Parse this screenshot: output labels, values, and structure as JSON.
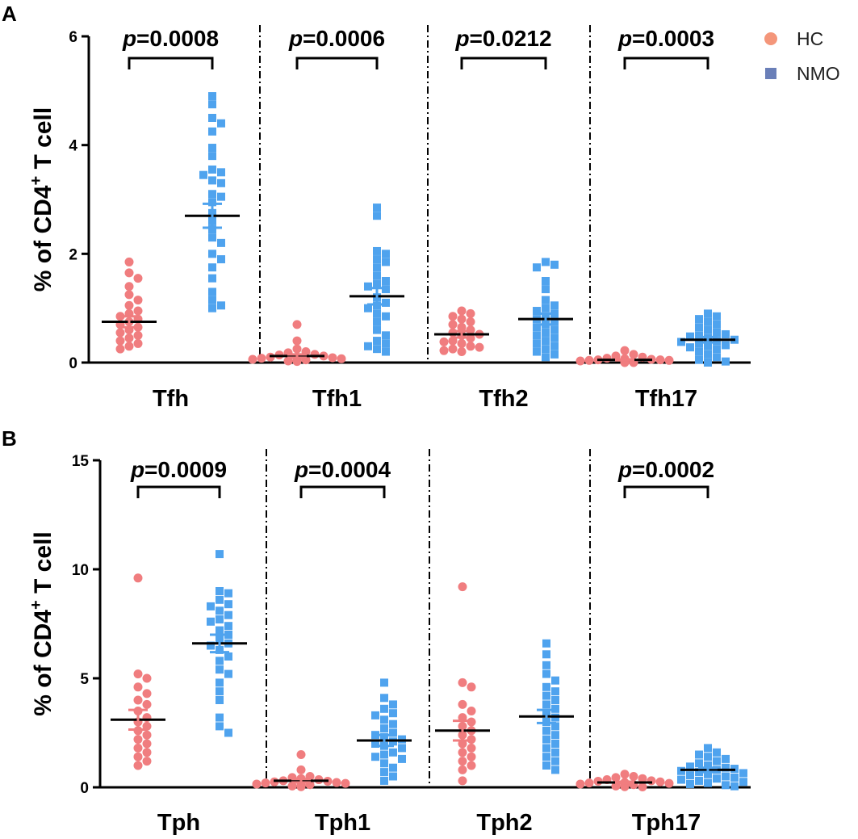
{
  "colors": {
    "hc": "#f07d7f",
    "nmo": "#4fa3ee",
    "legend_hc": "#f4967a",
    "legend_nmo": "#6a7fb8",
    "mean_line": "#000000"
  },
  "legend": {
    "items": [
      {
        "label": "HC",
        "shape": "circle",
        "color": "#f4967a"
      },
      {
        "label": "NMO",
        "shape": "square",
        "color": "#6a7fb8"
      }
    ]
  },
  "chart_data": [
    {
      "panel": "A",
      "type": "scatter",
      "title": "",
      "ylabel": "% of CD4⁺ T cell",
      "ylabel_main": "% of CD4",
      "ylabel_sup": "+",
      "ylabel_tail": " T cell",
      "ylim": [
        0,
        6
      ],
      "yticks": [
        0,
        2,
        4,
        6
      ],
      "categories": [
        "Tfh",
        "Tfh1",
        "Tfh2",
        "Tfh17"
      ],
      "groups": [
        "HC",
        "NMO"
      ],
      "p_values": [
        {
          "category": "Tfh",
          "p": "p",
          "value": "=0.0008"
        },
        {
          "category": "Tfh1",
          "p": "p",
          "value": "=0.0006"
        },
        {
          "category": "Tfh2",
          "p": "p",
          "value": "=0.0212"
        },
        {
          "category": "Tfh17",
          "p": "p",
          "value": "=0.0003"
        }
      ],
      "series": [
        {
          "category": "Tfh",
          "group": "HC",
          "mean": 0.75,
          "sem": 0.1,
          "values": [
            1.85,
            1.65,
            1.55,
            1.4,
            1.25,
            1.15,
            1.05,
            0.95,
            0.9,
            0.85,
            0.8,
            0.75,
            0.7,
            0.65,
            0.6,
            0.55,
            0.5,
            0.45,
            0.4,
            0.35,
            0.3,
            0.25
          ]
        },
        {
          "category": "Tfh",
          "group": "NMO",
          "mean": 2.7,
          "sem": 0.22,
          "values": [
            4.9,
            4.75,
            4.5,
            4.4,
            4.25,
            3.95,
            3.8,
            3.55,
            3.5,
            3.45,
            3.35,
            3.3,
            3.1,
            3.05,
            2.95,
            2.75,
            2.6,
            2.45,
            2.3,
            2.2,
            2.0,
            1.9,
            1.75,
            1.55,
            1.3,
            1.15,
            1.05,
            1.0
          ]
        },
        {
          "category": "Tfh1",
          "group": "HC",
          "mean": 0.12,
          "sem": 0.03,
          "values": [
            0.7,
            0.4,
            0.25,
            0.2,
            0.18,
            0.15,
            0.14,
            0.12,
            0.1,
            0.1,
            0.09,
            0.08,
            0.07,
            0.06,
            0.05,
            0.05,
            0.04,
            0.04,
            0.03,
            0.02
          ]
        },
        {
          "category": "Tfh1",
          "group": "NMO",
          "mean": 1.22,
          "sem": 0.15,
          "values": [
            2.85,
            2.7,
            2.05,
            2.0,
            1.9,
            1.85,
            1.75,
            1.6,
            1.5,
            1.45,
            1.4,
            1.35,
            1.2,
            1.1,
            1.05,
            1.0,
            0.9,
            0.85,
            0.75,
            0.6,
            0.5,
            0.4,
            0.35,
            0.3,
            0.25,
            0.2
          ]
        },
        {
          "category": "Tfh2",
          "group": "HC",
          "mean": 0.52,
          "sem": 0.06,
          "values": [
            0.95,
            0.9,
            0.85,
            0.8,
            0.75,
            0.7,
            0.65,
            0.6,
            0.55,
            0.52,
            0.5,
            0.45,
            0.4,
            0.38,
            0.35,
            0.3,
            0.28,
            0.25,
            0.22,
            0.2
          ]
        },
        {
          "category": "Tfh2",
          "group": "NMO",
          "mean": 0.8,
          "sem": 0.1,
          "values": [
            1.85,
            1.8,
            1.75,
            1.5,
            1.35,
            1.15,
            1.05,
            1.0,
            0.95,
            0.9,
            0.85,
            0.8,
            0.75,
            0.7,
            0.65,
            0.6,
            0.55,
            0.5,
            0.45,
            0.4,
            0.35,
            0.3,
            0.25,
            0.2,
            0.15,
            0.1
          ]
        },
        {
          "category": "Tfh17",
          "group": "HC",
          "mean": 0.05,
          "sem": 0.01,
          "values": [
            0.22,
            0.15,
            0.12,
            0.1,
            0.08,
            0.07,
            0.06,
            0.05,
            0.05,
            0.04,
            0.04,
            0.03,
            0.03,
            0.02,
            0.02,
            0.01,
            0.01,
            0.01,
            0.0,
            0.0
          ]
        },
        {
          "category": "Tfh17",
          "group": "NMO",
          "mean": 0.42,
          "sem": 0.05,
          "values": [
            0.9,
            0.85,
            0.8,
            0.75,
            0.7,
            0.65,
            0.6,
            0.55,
            0.52,
            0.5,
            0.48,
            0.45,
            0.42,
            0.4,
            0.38,
            0.35,
            0.32,
            0.3,
            0.28,
            0.25,
            0.2,
            0.15,
            0.1,
            0.05,
            0.02,
            0.0
          ]
        }
      ]
    },
    {
      "panel": "B",
      "type": "scatter",
      "title": "",
      "ylabel": "% of CD4⁺ T cell",
      "ylabel_main": "% of CD4",
      "ylabel_sup": "+",
      "ylabel_tail": " T cell",
      "ylim": [
        0,
        15
      ],
      "yticks": [
        0,
        5,
        10,
        15
      ],
      "categories": [
        "Tph",
        "Tph1",
        "Tph2",
        "Tph17"
      ],
      "groups": [
        "HC",
        "NMO"
      ],
      "p_values": [
        {
          "category": "Tph",
          "p": "p",
          "value": "=0.0009"
        },
        {
          "category": "Tph1",
          "p": "p",
          "value": "=0.0004"
        },
        {
          "category": "Tph17",
          "p": "p",
          "value": "=0.0002"
        }
      ],
      "series": [
        {
          "category": "Tph",
          "group": "HC",
          "mean": 3.1,
          "sem": 0.45,
          "values": [
            9.6,
            5.2,
            5.0,
            4.6,
            4.3,
            4.0,
            3.8,
            3.5,
            3.2,
            3.0,
            2.8,
            2.6,
            2.4,
            2.2,
            2.0,
            1.8,
            1.6,
            1.4,
            1.2,
            1.0
          ]
        },
        {
          "category": "Tph",
          "group": "NMO",
          "mean": 6.6,
          "sem": 0.4,
          "values": [
            10.7,
            9.0,
            8.9,
            8.6,
            8.4,
            8.3,
            8.1,
            7.9,
            7.7,
            7.6,
            7.4,
            7.2,
            7.0,
            6.8,
            6.6,
            6.5,
            6.3,
            6.0,
            5.8,
            5.4,
            5.2,
            4.8,
            4.4,
            4.0,
            3.2,
            2.8,
            2.5
          ]
        },
        {
          "category": "Tph1",
          "group": "HC",
          "mean": 0.3,
          "sem": 0.08,
          "values": [
            1.5,
            0.8,
            0.5,
            0.45,
            0.4,
            0.35,
            0.3,
            0.28,
            0.25,
            0.22,
            0.2,
            0.18,
            0.15,
            0.12,
            0.1,
            0.08,
            0.06,
            0.05,
            0.03
          ]
        },
        {
          "category": "Tph1",
          "group": "NMO",
          "mean": 2.15,
          "sem": 0.25,
          "values": [
            4.8,
            4.1,
            3.8,
            3.6,
            3.4,
            3.3,
            3.1,
            2.9,
            2.7,
            2.5,
            2.4,
            2.3,
            2.2,
            2.1,
            2.0,
            1.9,
            1.8,
            1.6,
            1.5,
            1.4,
            1.3,
            1.1,
            0.9,
            0.7,
            0.5,
            0.3
          ]
        },
        {
          "category": "Tph2",
          "group": "HC",
          "mean": 2.6,
          "sem": 0.45,
          "values": [
            9.2,
            4.8,
            4.6,
            3.8,
            3.5,
            3.2,
            3.0,
            2.8,
            2.6,
            2.4,
            2.2,
            2.0,
            1.8,
            1.6,
            1.4,
            1.2,
            1.0,
            0.8,
            0.3
          ]
        },
        {
          "category": "Tph2",
          "group": "NMO",
          "mean": 3.25,
          "sem": 0.3,
          "values": [
            6.6,
            6.1,
            5.6,
            5.2,
            4.9,
            4.6,
            4.4,
            4.2,
            4.0,
            3.8,
            3.6,
            3.4,
            3.2,
            3.0,
            2.8,
            2.6,
            2.4,
            2.2,
            2.0,
            1.8,
            1.6,
            1.4,
            1.2,
            1.0,
            0.8
          ]
        },
        {
          "category": "Tph17",
          "group": "HC",
          "mean": 0.22,
          "sem": 0.04,
          "values": [
            0.6,
            0.5,
            0.45,
            0.4,
            0.35,
            0.3,
            0.28,
            0.25,
            0.22,
            0.2,
            0.18,
            0.15,
            0.12,
            0.1,
            0.08,
            0.06,
            0.05,
            0.03,
            0.02
          ]
        },
        {
          "category": "Tph17",
          "group": "NMO",
          "mean": 0.8,
          "sem": 0.1,
          "values": [
            1.8,
            1.6,
            1.5,
            1.4,
            1.3,
            1.2,
            1.1,
            1.0,
            0.95,
            0.9,
            0.85,
            0.8,
            0.75,
            0.7,
            0.65,
            0.6,
            0.55,
            0.5,
            0.45,
            0.4,
            0.35,
            0.3,
            0.25,
            0.2,
            0.15,
            0.1,
            0.05
          ]
        }
      ]
    }
  ]
}
